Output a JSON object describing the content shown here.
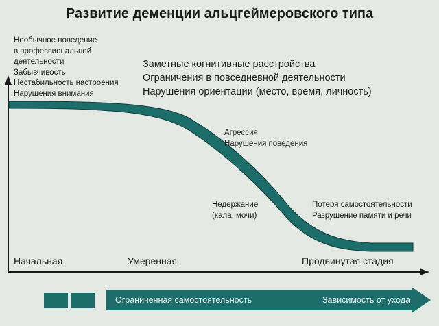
{
  "title": "Развитие деменции альцгеймеровского типа",
  "early_symptoms": [
    "Необычное поведение",
    "в профессиональной",
    "деятельности",
    "Забывчивость",
    "Нестабильность настроения",
    "Нарушения внимания"
  ],
  "moderate_symptoms": [
    "Заметные когнитивные расстройства",
    "Ограничения в повседневной деятельности",
    "Нарушения ориентации (место, время, личность)"
  ],
  "aggression_notes": [
    "Агрессия",
    "Нарушения поведения"
  ],
  "incontinence_notes": [
    "Недержание",
    "(кала, мочи)"
  ],
  "late_symptoms": [
    "Потеря самостоятельности",
    "Разрушение памяти и речи"
  ],
  "stages": {
    "early": "Начальная",
    "moderate": "Умеренная",
    "advanced": "Продвинутая стадия"
  },
  "bottom_arrow": {
    "left_label": "Ограниченная самостоятельность",
    "right_label": "Зависимость от ухода"
  },
  "colors": {
    "background": "#e5e9e4",
    "curve": "#1d6e6a",
    "axis": "#1a1a1a"
  }
}
